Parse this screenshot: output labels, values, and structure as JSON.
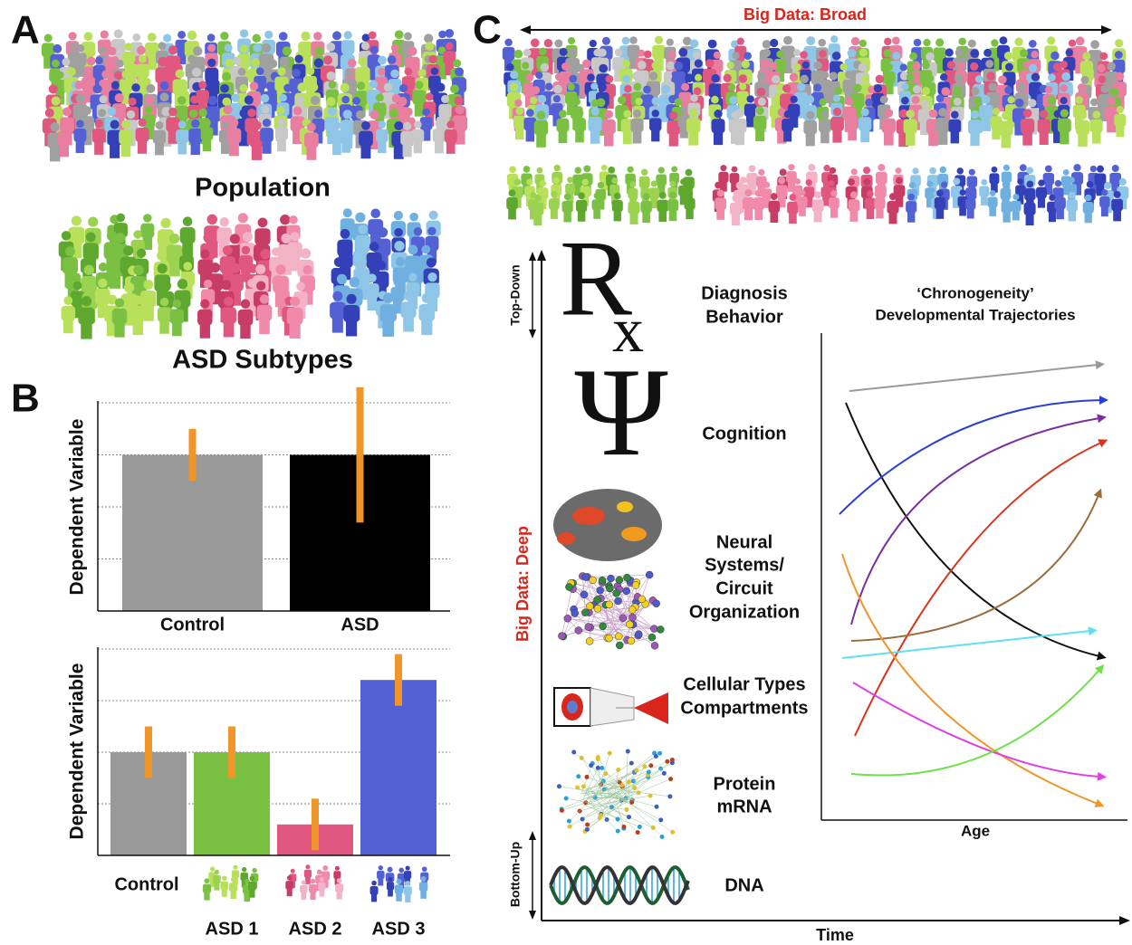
{
  "panel_labels": [
    "A",
    "B",
    "C"
  ],
  "panel_a": {
    "population_label": "Population",
    "subtypes_label": "ASD Subtypes"
  },
  "chart_data": [
    {
      "type": "bar",
      "ylabel": "Dependent Variable",
      "categories": [
        "Control",
        "ASD"
      ],
      "values": [
        3,
        3
      ],
      "errors": [
        0.5,
        1.3
      ],
      "colors": [
        "#999999",
        "#000000"
      ],
      "error_color": "#f0952a",
      "ylim": [
        0,
        4
      ],
      "yticks": [
        0,
        1,
        2,
        3,
        4
      ],
      "grid": true
    },
    {
      "type": "bar",
      "ylabel": "Dependent Variable",
      "categories": [
        "Control",
        "ASD 1",
        "ASD 2",
        "ASD 3"
      ],
      "values": [
        2,
        2,
        0.6,
        3.4
      ],
      "errors": [
        0.5,
        0.5,
        0.5,
        0.5
      ],
      "colors": [
        "#999999",
        "#7ac143",
        "#e0577f",
        "#5461d4"
      ],
      "error_color": "#f0952a",
      "ylim": [
        0,
        4
      ],
      "yticks": [
        0,
        1,
        2,
        3,
        4
      ],
      "grid": true
    }
  ],
  "panel_c": {
    "broad_label": "Big Data:  Broad",
    "deep_label": "Big Data:  Deep",
    "top_down": "Top-Down",
    "bottom_up": "Bottom-Up",
    "time_label": "Time",
    "rx": [
      "R",
      "x"
    ],
    "psi": "Ψ",
    "levels": [
      [
        "Diagnosis",
        "Behavior"
      ],
      [
        "Cognition"
      ],
      [
        "Neural",
        "Systems/",
        "Circuit",
        "Organization"
      ],
      [
        "Cellular Types",
        "Compartments"
      ],
      [
        "Protein",
        "mRNA"
      ],
      [
        "DNA"
      ]
    ],
    "trajectories": {
      "title": [
        "‘Chronogeneity’",
        "Developmental Trajectories"
      ],
      "xlabel": "Age"
    }
  }
}
